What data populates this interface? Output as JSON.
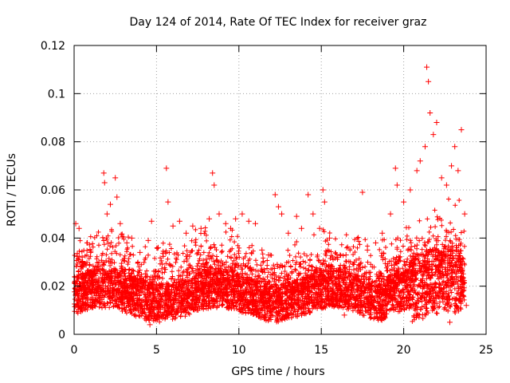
{
  "chart_data": {
    "type": "scatter",
    "title": "Day 124 of 2014, Rate Of TEC Index for receiver graz",
    "xlabel": "GPS time / hours",
    "ylabel": "ROTI / TECUs",
    "xlim": [
      0,
      25
    ],
    "ylim": [
      0,
      0.12
    ],
    "grid": true,
    "marker": "+",
    "color": "#ff0000",
    "x_ticks": [
      0,
      5,
      10,
      15,
      20,
      25
    ],
    "x_tick_labels": [
      "0",
      "5",
      "10",
      "15",
      "20",
      "25"
    ],
    "y_ticks": [
      0,
      0.02,
      0.04,
      0.06,
      0.08,
      0.1,
      0.12
    ],
    "y_tick_labels": [
      "0",
      "0.02",
      "0.04",
      "0.06",
      "0.08",
      "0.1",
      "0.12"
    ],
    "series": [
      {
        "name": "ROTI",
        "points": [
          [
            0.1,
            0.046
          ],
          [
            0.3,
            0.044
          ],
          [
            0.5,
            0.03
          ],
          [
            0.8,
            0.038
          ],
          [
            1.0,
            0.034
          ],
          [
            1.3,
            0.028
          ],
          [
            1.5,
            0.03
          ],
          [
            1.8,
            0.067
          ],
          [
            1.85,
            0.063
          ],
          [
            2.0,
            0.05
          ],
          [
            2.2,
            0.054
          ],
          [
            2.5,
            0.065
          ],
          [
            2.6,
            0.057
          ],
          [
            2.8,
            0.046
          ],
          [
            3.2,
            0.038
          ],
          [
            3.5,
            0.04
          ],
          [
            4.0,
            0.034
          ],
          [
            4.5,
            0.039
          ],
          [
            4.7,
            0.047
          ],
          [
            5.1,
            0.036
          ],
          [
            5.6,
            0.069
          ],
          [
            5.7,
            0.055
          ],
          [
            6.0,
            0.045
          ],
          [
            6.4,
            0.047
          ],
          [
            6.8,
            0.042
          ],
          [
            7.2,
            0.045
          ],
          [
            7.7,
            0.044
          ],
          [
            8.2,
            0.048
          ],
          [
            8.4,
            0.067
          ],
          [
            8.5,
            0.062
          ],
          [
            8.8,
            0.05
          ],
          [
            9.2,
            0.046
          ],
          [
            9.5,
            0.044
          ],
          [
            9.8,
            0.048
          ],
          [
            10.2,
            0.05
          ],
          [
            10.6,
            0.047
          ],
          [
            11.0,
            0.046
          ],
          [
            11.4,
            0.035
          ],
          [
            11.8,
            0.033
          ],
          [
            12.2,
            0.058
          ],
          [
            12.4,
            0.053
          ],
          [
            12.6,
            0.05
          ],
          [
            13.0,
            0.042
          ],
          [
            13.5,
            0.049
          ],
          [
            13.8,
            0.044
          ],
          [
            14.2,
            0.058
          ],
          [
            14.5,
            0.05
          ],
          [
            14.9,
            0.044
          ],
          [
            15.1,
            0.06
          ],
          [
            15.2,
            0.055
          ],
          [
            15.5,
            0.04
          ],
          [
            16.0,
            0.032
          ],
          [
            16.5,
            0.033
          ],
          [
            17.0,
            0.03
          ],
          [
            17.5,
            0.059
          ],
          [
            17.8,
            0.035
          ],
          [
            18.3,
            0.038
          ],
          [
            18.7,
            0.042
          ],
          [
            19.2,
            0.05
          ],
          [
            19.5,
            0.069
          ],
          [
            19.6,
            0.062
          ],
          [
            20.0,
            0.055
          ],
          [
            20.4,
            0.06
          ],
          [
            20.8,
            0.068
          ],
          [
            21.0,
            0.072
          ],
          [
            21.3,
            0.078
          ],
          [
            21.4,
            0.111
          ],
          [
            21.5,
            0.105
          ],
          [
            21.6,
            0.092
          ],
          [
            21.8,
            0.083
          ],
          [
            22.0,
            0.088
          ],
          [
            22.3,
            0.065
          ],
          [
            22.6,
            0.062
          ],
          [
            22.9,
            0.07
          ],
          [
            23.1,
            0.078
          ],
          [
            23.3,
            0.068
          ],
          [
            23.5,
            0.085
          ],
          [
            23.7,
            0.05
          ],
          [
            0.2,
            0.022
          ],
          [
            0.6,
            0.018
          ],
          [
            1.1,
            0.02
          ],
          [
            1.6,
            0.015
          ],
          [
            2.1,
            0.024
          ],
          [
            2.7,
            0.019
          ],
          [
            3.3,
            0.016
          ],
          [
            3.9,
            0.021
          ],
          [
            4.4,
            0.012
          ],
          [
            4.6,
            0.004
          ],
          [
            5.2,
            0.02
          ],
          [
            5.9,
            0.023
          ],
          [
            6.5,
            0.018
          ],
          [
            7.1,
            0.021
          ],
          [
            7.8,
            0.017
          ],
          [
            8.6,
            0.025
          ],
          [
            9.3,
            0.019
          ],
          [
            10.0,
            0.022
          ],
          [
            10.7,
            0.018
          ],
          [
            11.3,
            0.02
          ],
          [
            12.0,
            0.016
          ],
          [
            12.7,
            0.021
          ],
          [
            13.3,
            0.018
          ],
          [
            14.0,
            0.02
          ],
          [
            14.7,
            0.017
          ],
          [
            15.4,
            0.022
          ],
          [
            16.2,
            0.015
          ],
          [
            16.8,
            0.018
          ],
          [
            17.4,
            0.02
          ],
          [
            18.1,
            0.016
          ],
          [
            18.8,
            0.024
          ],
          [
            19.4,
            0.021
          ],
          [
            20.1,
            0.026
          ],
          [
            20.7,
            0.023
          ],
          [
            21.2,
            0.028
          ],
          [
            21.9,
            0.025
          ],
          [
            22.5,
            0.03
          ],
          [
            23.0,
            0.022
          ],
          [
            23.6,
            0.018
          ],
          [
            23.8,
            0.012
          ],
          [
            22.8,
            0.005
          ],
          [
            16.4,
            0.008
          ]
        ]
      }
    ]
  }
}
